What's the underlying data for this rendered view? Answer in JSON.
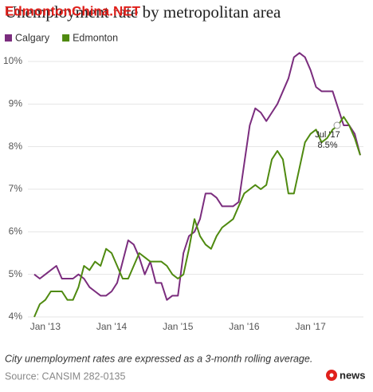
{
  "watermark": "EdmontonChina.NET",
  "logo": "news",
  "chart_data": {
    "type": "line",
    "title": "Unemployment rate by metropolitan area",
    "caption": "City unemployment rates are expressed as a 3-month rolling average.",
    "source": "Source: CANSIM 282-0135",
    "categories": [
      null,
      null,
      "Jan '13",
      null,
      null,
      null,
      null,
      null,
      null,
      null,
      null,
      null,
      null,
      null,
      "Jan '14",
      null,
      null,
      null,
      null,
      null,
      null,
      null,
      null,
      null,
      null,
      null,
      "Jan '15",
      null,
      null,
      null,
      null,
      null,
      null,
      null,
      null,
      null,
      null,
      null,
      "Jan '16",
      null,
      null,
      null,
      null,
      null,
      null,
      null,
      null,
      null,
      null,
      null,
      "Jan '17",
      null,
      null,
      null,
      null,
      null,
      null,
      null,
      null,
      null
    ],
    "series": [
      {
        "name": "Calgary",
        "color": "#7b2d7e",
        "values": [
          5.0,
          4.9,
          5.0,
          5.1,
          5.2,
          4.9,
          4.9,
          4.9,
          5.0,
          4.9,
          4.7,
          4.6,
          4.5,
          4.5,
          4.6,
          4.8,
          5.3,
          5.8,
          5.7,
          5.4,
          5.0,
          5.3,
          4.8,
          4.8,
          4.4,
          4.5,
          4.5,
          5.5,
          5.9,
          6.0,
          6.3,
          6.9,
          6.9,
          6.8,
          6.6,
          6.6,
          6.6,
          6.7,
          7.6,
          8.5,
          8.9,
          8.8,
          8.6,
          8.8,
          9.0,
          9.3,
          9.6,
          10.1,
          10.2,
          10.1,
          9.8,
          9.4,
          9.3,
          9.3,
          9.3,
          8.9,
          8.5,
          8.5,
          8.3,
          7.8
        ]
      },
      {
        "name": "Edmonton",
        "color": "#4f8a10",
        "values": [
          4.0,
          4.3,
          4.4,
          4.6,
          4.6,
          4.6,
          4.4,
          4.4,
          4.7,
          5.2,
          5.1,
          5.3,
          5.2,
          5.6,
          5.5,
          5.2,
          4.9,
          4.9,
          5.2,
          5.5,
          5.4,
          5.3,
          5.3,
          5.3,
          5.2,
          5.0,
          4.9,
          5.0,
          5.6,
          6.3,
          5.9,
          5.7,
          5.6,
          5.9,
          6.1,
          6.2,
          6.3,
          6.6,
          6.9,
          7.0,
          7.1,
          7.0,
          7.1,
          7.7,
          7.9,
          7.7,
          6.9,
          6.9,
          7.5,
          8.1,
          8.3,
          8.4,
          8.1,
          8.2,
          8.4,
          8.5,
          8.7,
          8.5,
          8.2,
          7.8
        ]
      }
    ],
    "ylim": [
      4,
      10.3
    ],
    "yticks": [
      {
        "value": 4,
        "label": "4%"
      },
      {
        "value": 5,
        "label": "5%"
      },
      {
        "value": 6,
        "label": "6%"
      },
      {
        "value": 7,
        "label": "7%"
      },
      {
        "value": 8,
        "label": "8%"
      },
      {
        "value": 9,
        "label": "9%"
      },
      {
        "value": 10,
        "label": "10%"
      }
    ],
    "grid": true,
    "annotation": {
      "category": "Jul '17",
      "value": 8.5,
      "label": "8.5%"
    }
  }
}
